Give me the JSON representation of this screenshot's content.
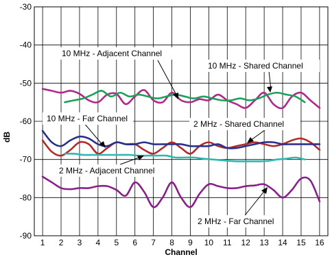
{
  "chart_data": {
    "type": "line",
    "xlabel": "Channel",
    "ylabel": "dB",
    "xlim": [
      0.55,
      16.45
    ],
    "ylim": [
      -90,
      -30
    ],
    "x_ticks": [
      1,
      2,
      3,
      4,
      5,
      6,
      7,
      8,
      9,
      10,
      11,
      12,
      13,
      14,
      15,
      16
    ],
    "y_ticks": [
      -90,
      -80,
      -70,
      -60,
      -50,
      -40,
      -30
    ],
    "grid": true,
    "series": [
      {
        "name": "10 MHz - Shared Channel",
        "color": "#b0288a",
        "x": [
          1.0,
          1.5,
          2.0,
          2.5,
          3.0,
          3.5,
          4.0,
          4.5,
          5.0,
          5.5,
          6.0,
          6.5,
          7.0,
          7.5,
          8.0,
          8.5,
          9.0,
          9.5,
          10.0,
          10.5,
          11.0,
          11.5,
          12.0,
          12.5,
          13.0,
          13.5,
          14.0,
          14.5,
          15.0,
          15.5,
          16.0
        ],
        "y": [
          -51.5,
          -52.0,
          -52.5,
          -52.0,
          -52.8,
          -54.5,
          -55.0,
          -53.0,
          -52.8,
          -55.5,
          -53.5,
          -51.8,
          -54.5,
          -55.0,
          -52.5,
          -54.5,
          -55.0,
          -54.2,
          -54.5,
          -53.0,
          -54.5,
          -55.5,
          -56.5,
          -54.5,
          -52.5,
          -55.5,
          -56.5,
          -53.5,
          -52.5,
          -54.5,
          -56.5
        ]
      },
      {
        "name": "10 MHz - Adjacent Channel",
        "color": "#1aa05a",
        "x": [
          2.2,
          2.7,
          3.2,
          3.7,
          4.2,
          4.7,
          5.2,
          5.7,
          6.2,
          6.7,
          7.2,
          7.7,
          8.2,
          8.7,
          9.2,
          9.7,
          10.2,
          10.7,
          11.2,
          11.7,
          12.2,
          12.7,
          13.2,
          13.7,
          14.2,
          14.7,
          15.2
        ],
        "y": [
          -55.0,
          -54.5,
          -54.0,
          -53.0,
          -52.0,
          -53.5,
          -52.5,
          -53.5,
          -53.0,
          -53.5,
          -54.0,
          -53.5,
          -53.0,
          -53.5,
          -54.0,
          -53.5,
          -54.0,
          -54.5,
          -54.5,
          -54.0,
          -54.5,
          -54.0,
          -53.0,
          -52.5,
          -53.0,
          -53.5,
          -55.0
        ]
      },
      {
        "name": "10 MHz - Far Channel",
        "color": "#b22a2a",
        "x": [
          1.0,
          1.5,
          2.0,
          2.5,
          3.0,
          3.5,
          4.0,
          4.5,
          5.0,
          5.5,
          6.0,
          6.5,
          7.0,
          7.5,
          8.0,
          8.5,
          9.0,
          9.5,
          10.0,
          10.5,
          11.0,
          11.5,
          12.0,
          12.5,
          13.0,
          13.5,
          14.0,
          14.5,
          15.0,
          15.5,
          16.0
        ],
        "y": [
          -65.0,
          -68.0,
          -69.0,
          -67.5,
          -65.5,
          -66.0,
          -68.5,
          -67.0,
          -65.5,
          -66.0,
          -66.0,
          -67.5,
          -68.5,
          -67.0,
          -65.5,
          -67.0,
          -68.5,
          -66.5,
          -65.5,
          -66.5,
          -67.0,
          -66.5,
          -66.0,
          -65.5,
          -66.0,
          -66.5,
          -66.0,
          -65.0,
          -64.5,
          -65.5,
          -67.5
        ]
      },
      {
        "name": "2 MHz - Shared Channel",
        "color": "#2a2f8a",
        "x": [
          1.0,
          1.5,
          2.0,
          2.5,
          3.0,
          3.5,
          4.0,
          4.5,
          5.0,
          5.5,
          6.0,
          6.5,
          7.0,
          7.5,
          8.0,
          8.5,
          9.0,
          9.5,
          10.0,
          10.5,
          11.0,
          11.5,
          12.0,
          12.5,
          13.0,
          13.5,
          14.0,
          14.5,
          15.0,
          15.5,
          16.0
        ],
        "y": [
          -62.5,
          -65.5,
          -66.5,
          -65.0,
          -64.0,
          -64.5,
          -66.0,
          -66.5,
          -65.5,
          -66.0,
          -66.0,
          -65.5,
          -66.0,
          -66.0,
          -66.0,
          -66.0,
          -66.5,
          -66.5,
          -66.5,
          -66.0,
          -67.0,
          -67.0,
          -66.5,
          -66.0,
          -65.5,
          -65.5,
          -66.0,
          -66.0,
          -66.0,
          -66.0,
          -66.0
        ]
      },
      {
        "name": "2 MHz - Adjacent Channel",
        "color": "#2fb7b0",
        "x": [
          2.2,
          2.7,
          3.2,
          3.7,
          4.2,
          4.7,
          5.2,
          5.7,
          6.2,
          6.7,
          7.2,
          7.7,
          8.2,
          8.7,
          9.2,
          9.7,
          10.2,
          10.7,
          11.2,
          11.7,
          12.2,
          12.7,
          13.2,
          13.7,
          14.2,
          14.7,
          15.2
        ],
        "y": [
          -68.5,
          -68.5,
          -68.8,
          -68.8,
          -68.8,
          -68.8,
          -68.8,
          -68.8,
          -69.0,
          -69.0,
          -69.0,
          -69.0,
          -69.5,
          -69.5,
          -69.5,
          -69.8,
          -70.0,
          -70.2,
          -70.4,
          -70.5,
          -70.5,
          -70.5,
          -70.4,
          -70.0,
          -69.8,
          -69.5,
          -70.0
        ]
      },
      {
        "name": "2 MHz - Far Channel",
        "color": "#8a1e8a",
        "x": [
          1.0,
          1.5,
          2.0,
          2.5,
          3.0,
          3.5,
          4.0,
          4.5,
          5.0,
          5.5,
          6.0,
          6.5,
          7.0,
          7.5,
          8.0,
          8.5,
          9.0,
          9.5,
          10.0,
          10.5,
          11.0,
          11.5,
          12.0,
          12.5,
          13.0,
          13.5,
          14.0,
          14.5,
          15.0,
          15.5,
          16.0
        ],
        "y": [
          -74.5,
          -76.0,
          -77.5,
          -77.8,
          -77.5,
          -77.5,
          -77.0,
          -77.0,
          -78.0,
          -79.5,
          -76.0,
          -78.5,
          -82.5,
          -80.0,
          -76.0,
          -80.0,
          -82.5,
          -79.0,
          -76.5,
          -77.0,
          -77.5,
          -77.5,
          -77.0,
          -76.8,
          -76.5,
          -78.0,
          -80.0,
          -78.0,
          -75.0,
          -75.5,
          -81.0
        ]
      }
    ]
  }
}
